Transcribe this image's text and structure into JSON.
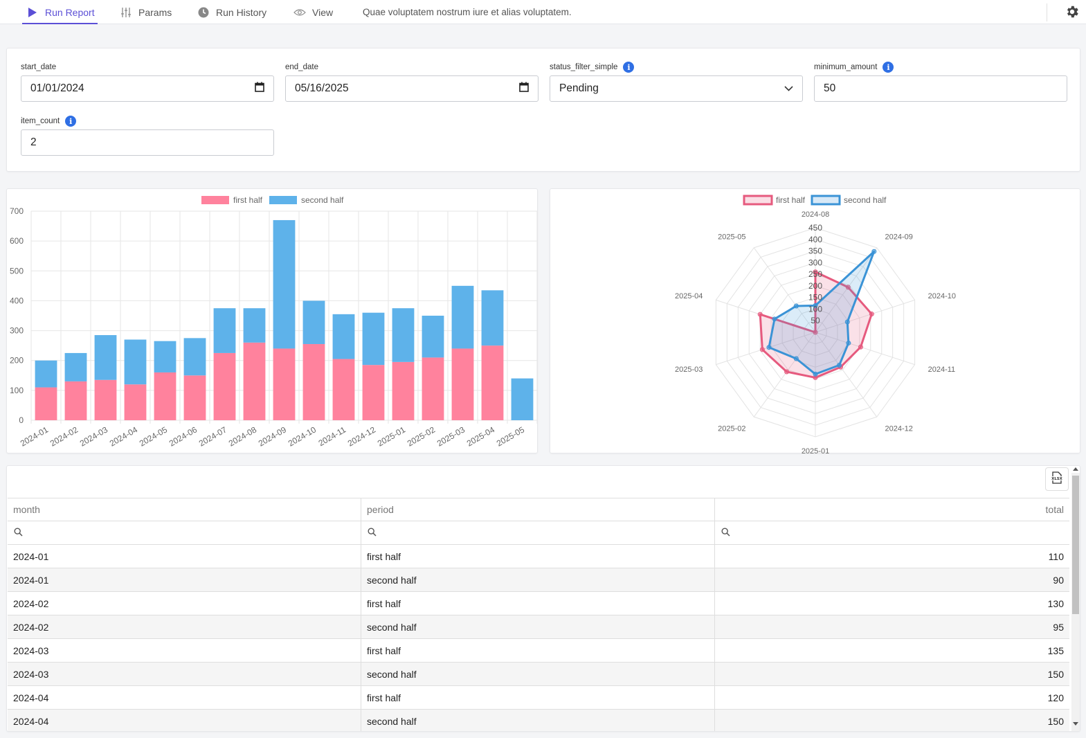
{
  "nav": {
    "tabs": [
      {
        "label": "Run Report",
        "icon": "play-icon",
        "active": true
      },
      {
        "label": "Params",
        "icon": "sliders-icon",
        "active": false
      },
      {
        "label": "Run History",
        "icon": "clock-icon",
        "active": false
      },
      {
        "label": "View",
        "icon": "eye-icon",
        "active": false
      }
    ],
    "description": "Quae voluptatem nostrum iure et alias voluptatem.",
    "settings_icon": "gear-icon",
    "accent_color": "#5b4fd6"
  },
  "params": {
    "start_date": {
      "label": "start_date",
      "value": "01/01/2024"
    },
    "end_date": {
      "label": "end_date",
      "value": "05/16/2025"
    },
    "status_filter_simple": {
      "label": "status_filter_simple",
      "value": "Pending"
    },
    "minimum_amount": {
      "label": "minimum_amount",
      "value": "50"
    },
    "item_count": {
      "label": "item_count",
      "value": "2"
    },
    "info_glyph": "i"
  },
  "chart_data": [
    {
      "type": "bar",
      "stacked": true,
      "categories": [
        "2024-01",
        "2024-02",
        "2024-03",
        "2024-04",
        "2024-05",
        "2024-06",
        "2024-07",
        "2024-08",
        "2024-09",
        "2024-10",
        "2024-11",
        "2024-12",
        "2025-01",
        "2025-02",
        "2025-03",
        "2025-04",
        "2025-05"
      ],
      "series": [
        {
          "name": "first half",
          "color": "#ff829d",
          "values": [
            110,
            130,
            135,
            120,
            160,
            150,
            225,
            260,
            240,
            255,
            205,
            185,
            195,
            210,
            240,
            250,
            0
          ]
        },
        {
          "name": "second half",
          "color": "#5eb2ea",
          "values": [
            90,
            95,
            150,
            150,
            105,
            125,
            150,
            115,
            430,
            145,
            150,
            175,
            180,
            140,
            210,
            185,
            140
          ]
        }
      ],
      "ylim": [
        0,
        700
      ],
      "yticks": [
        0,
        100,
        200,
        300,
        400,
        500,
        600,
        700
      ],
      "legend": "top-center",
      "grid": true
    },
    {
      "type": "radar",
      "categories": [
        "2024-08",
        "2024-09",
        "2024-10",
        "2024-11",
        "2024-12",
        "2025-01",
        "2025-02",
        "2025-03",
        "2025-04",
        "2025-05"
      ],
      "series": [
        {
          "name": "first half",
          "color": "#e65a7e",
          "values": [
            260,
            240,
            255,
            205,
            185,
            195,
            210,
            240,
            250,
            0
          ]
        },
        {
          "name": "second half",
          "color": "#3a93d6",
          "values": [
            115,
            430,
            145,
            150,
            175,
            180,
            140,
            210,
            185,
            140
          ]
        }
      ],
      "rlim": [
        0,
        450
      ],
      "rticks": [
        50,
        100,
        150,
        200,
        250,
        300,
        350,
        400,
        450
      ],
      "legend": "top-center",
      "grid": true
    }
  ],
  "table": {
    "export_icon": "xlsx-icon",
    "search_icon": "search-icon",
    "columns": [
      "month",
      "period",
      "total"
    ],
    "rows": [
      [
        "2024-01",
        "first half",
        "110"
      ],
      [
        "2024-01",
        "second half",
        "90"
      ],
      [
        "2024-02",
        "first half",
        "130"
      ],
      [
        "2024-02",
        "second half",
        "95"
      ],
      [
        "2024-03",
        "first half",
        "135"
      ],
      [
        "2024-03",
        "second half",
        "150"
      ],
      [
        "2024-04",
        "first half",
        "120"
      ],
      [
        "2024-04",
        "second half",
        "150"
      ]
    ]
  }
}
